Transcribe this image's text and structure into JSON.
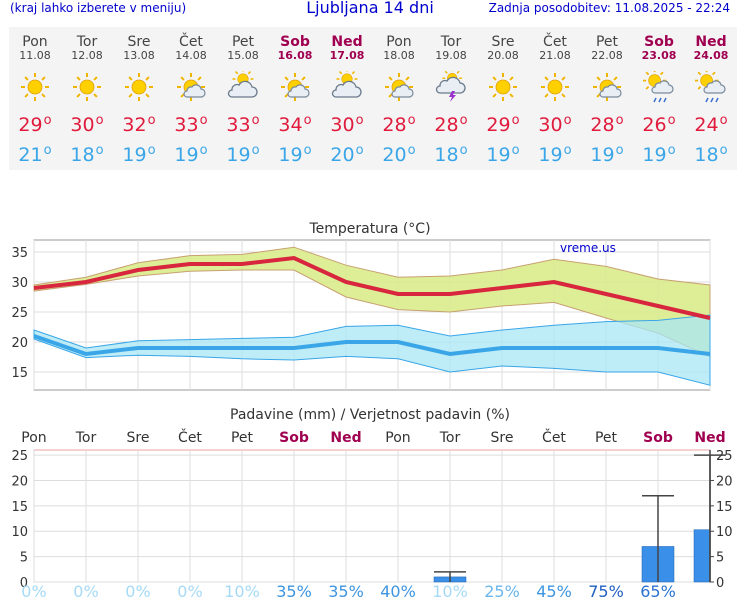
{
  "header": {
    "location_hint": "(kraj lahko izberete v meniju)",
    "title": "Ljubljana 14 dni",
    "last_update": "Zadnja posodobitev: 11.08.2025 - 22:24"
  },
  "colors": {
    "link_blue": "#0000cc",
    "weekend": "#a00050",
    "max_temp": "#e01b3c",
    "min_temp": "#3aa6e8",
    "max_band": "#d9ec8c",
    "min_band": "#a8e6f4",
    "overlap": "#8fd47f",
    "precip_bar": "#3a8fe8"
  },
  "forecast": [
    {
      "day": "Pon",
      "date": "11.08",
      "icon": "sun-icon",
      "max": "29",
      "min": "21",
      "weekend": false
    },
    {
      "day": "Tor",
      "date": "12.08",
      "icon": "sun-icon",
      "max": "30",
      "min": "18",
      "weekend": false
    },
    {
      "day": "Sre",
      "date": "13.08",
      "icon": "sun-icon",
      "max": "32",
      "min": "19",
      "weekend": false
    },
    {
      "day": "Čet",
      "date": "14.08",
      "icon": "sun-cloud-icon",
      "max": "33",
      "min": "19",
      "weekend": false
    },
    {
      "day": "Pet",
      "date": "15.08",
      "icon": "cloud-sun-icon",
      "max": "33",
      "min": "19",
      "weekend": false
    },
    {
      "day": "Sob",
      "date": "16.08",
      "icon": "sun-cloud-icon",
      "max": "34",
      "min": "19",
      "weekend": true
    },
    {
      "day": "Ned",
      "date": "17.08",
      "icon": "cloud-sun-icon",
      "max": "30",
      "min": "20",
      "weekend": true
    },
    {
      "day": "Pon",
      "date": "18.08",
      "icon": "sun-cloud-icon",
      "max": "28",
      "min": "20",
      "weekend": false
    },
    {
      "day": "Tor",
      "date": "19.08",
      "icon": "thunderstorm-icon",
      "max": "28",
      "min": "18",
      "weekend": false
    },
    {
      "day": "Sre",
      "date": "20.08",
      "icon": "sun-icon",
      "max": "29",
      "min": "19",
      "weekend": false
    },
    {
      "day": "Čet",
      "date": "21.08",
      "icon": "sun-icon",
      "max": "30",
      "min": "19",
      "weekend": false
    },
    {
      "day": "Pet",
      "date": "22.08",
      "icon": "sun-cloud-icon",
      "max": "28",
      "min": "19",
      "weekend": false
    },
    {
      "day": "Sob",
      "date": "23.08",
      "icon": "sun-rain-icon",
      "max": "26",
      "min": "19",
      "weekend": true
    },
    {
      "day": "Ned",
      "date": "24.08",
      "icon": "sun-rain-icon",
      "max": "24",
      "min": "18",
      "weekend": true
    }
  ],
  "chart_data": [
    {
      "type": "line",
      "title": "Temperatura (°C)",
      "watermark": "vreme.us",
      "x": [
        "Pon",
        "Tor",
        "Sre",
        "Čet",
        "Pet",
        "Sob",
        "Ned",
        "Pon",
        "Tor",
        "Sre",
        "Čet",
        "Pet",
        "Sob",
        "Ned"
      ],
      "ylim": [
        12,
        37
      ],
      "yticks": [
        15,
        20,
        25,
        30,
        35
      ],
      "series": [
        {
          "name": "max",
          "values": [
            29,
            30,
            32,
            33,
            33,
            34,
            30,
            28,
            28,
            29,
            30,
            28,
            26,
            24
          ]
        },
        {
          "name": "max_high",
          "values": [
            29.5,
            30.8,
            33.2,
            34.4,
            34.6,
            35.8,
            32.8,
            30.8,
            31,
            32,
            33.8,
            32.6,
            30.5,
            29.5
          ]
        },
        {
          "name": "max_low",
          "values": [
            28.5,
            29.6,
            31,
            31.8,
            32,
            32,
            27.5,
            25.4,
            25,
            26,
            26.6,
            24,
            21.5,
            17.5
          ]
        },
        {
          "name": "min",
          "values": [
            21,
            18,
            19,
            19,
            19,
            19,
            20,
            20,
            18,
            19,
            19,
            19,
            19,
            18
          ]
        },
        {
          "name": "min_high",
          "values": [
            22,
            19,
            20.2,
            20.4,
            20.6,
            20.8,
            22.6,
            22.8,
            21,
            22,
            22.8,
            23.4,
            23.6,
            24.5
          ]
        },
        {
          "name": "min_low",
          "values": [
            20.5,
            17.4,
            17.8,
            17.6,
            17.2,
            17,
            17.6,
            17.2,
            15,
            16,
            15.6,
            15,
            15,
            12.8
          ]
        }
      ]
    },
    {
      "type": "bar",
      "title": "Padavine (mm) / Verjetnost padavin (%)",
      "categories": [
        "Pon",
        "Tor",
        "Sre",
        "Čet",
        "Pet",
        "Sob",
        "Ned",
        "Pon",
        "Tor",
        "Sre",
        "Čet",
        "Pet",
        "Sob",
        "Ned"
      ],
      "ylim": [
        0,
        26
      ],
      "yticks": [
        0,
        5,
        10,
        15,
        20,
        25
      ],
      "values": [
        0,
        0,
        0,
        0,
        0,
        0,
        0,
        0,
        1,
        0,
        0,
        0,
        7,
        10.3
      ],
      "error_high": [
        0,
        0,
        0,
        0,
        0,
        0,
        0,
        0,
        2,
        0,
        0,
        0,
        17,
        25
      ],
      "probability": [
        "0%",
        "0%",
        "0%",
        "0%",
        "10%",
        "35%",
        "35%",
        "40%",
        "10%",
        "25%",
        "45%",
        "75%",
        "65%"
      ]
    }
  ]
}
